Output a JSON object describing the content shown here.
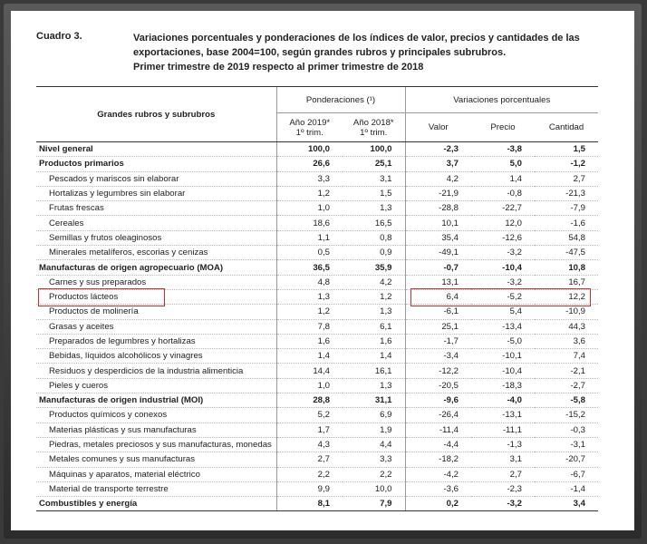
{
  "header": {
    "label": "Cuadro 3.",
    "title_lines": [
      "Variaciones porcentuales y ponderaciones de los índices de valor, precios y cantidades de las",
      "exportaciones, base 2004=100, según grandes rubros y principales subrubros.",
      "Primer trimestre de 2019 respecto al primer trimestre de 2018"
    ]
  },
  "table": {
    "row_header": "Grandes rubros y subrubros",
    "groups": [
      {
        "label": "Ponderaciones (¹)",
        "span": 2
      },
      {
        "label": "Variaciones porcentuales",
        "span": 3
      }
    ],
    "columns": [
      [
        "Año 2019*",
        "1º trim."
      ],
      [
        "Año 2018*",
        "1º trim."
      ],
      [
        "Valor"
      ],
      [
        "Precio"
      ],
      [
        "Cantidad"
      ]
    ],
    "rows": [
      {
        "name": "Nivel general",
        "values": [
          "100,0",
          "100,0",
          "-2,3",
          "-3,8",
          "1,5"
        ],
        "bold": true
      },
      {
        "name": "Productos primarios",
        "values": [
          "26,6",
          "25,1",
          "3,7",
          "5,0",
          "-1,2"
        ],
        "bold": true
      },
      {
        "name": "Pescados y mariscos sin elaborar",
        "values": [
          "3,3",
          "3,1",
          "4,2",
          "1,4",
          "2,7"
        ]
      },
      {
        "name": "Hortalizas y legumbres sin elaborar",
        "values": [
          "1,2",
          "1,5",
          "-21,9",
          "-0,8",
          "-21,3"
        ]
      },
      {
        "name": "Frutas frescas",
        "values": [
          "1,0",
          "1,3",
          "-28,8",
          "-22,7",
          "-7,9"
        ]
      },
      {
        "name": "Cereales",
        "values": [
          "18,6",
          "16,5",
          "10,1",
          "12,0",
          "-1,6"
        ]
      },
      {
        "name": "Semillas y frutos oleaginosos",
        "values": [
          "1,1",
          "0,8",
          "35,4",
          "-12,6",
          "54,8"
        ]
      },
      {
        "name": "Minerales metalíferos, escorias y cenizas",
        "values": [
          "0,5",
          "0,9",
          "-49,1",
          "-3,2",
          "-47,5"
        ]
      },
      {
        "name": "Manufacturas de origen agropecuario (MOA)",
        "values": [
          "36,5",
          "35,9",
          "-0,7",
          "-10,4",
          "10,8"
        ],
        "bold": true
      },
      {
        "name": "Carnes y sus preparados",
        "values": [
          "4,8",
          "4,2",
          "13,1",
          "-3,2",
          "16,7"
        ]
      },
      {
        "name": "Productos lácteos",
        "values": [
          "1,3",
          "1,2",
          "6,4",
          "-5,2",
          "12,2"
        ],
        "highlight": true
      },
      {
        "name": "Productos de molinería",
        "values": [
          "1,2",
          "1,3",
          "-6,1",
          "5,4",
          "-10,9"
        ]
      },
      {
        "name": "Grasas y aceites",
        "values": [
          "7,8",
          "6,1",
          "25,1",
          "-13,4",
          "44,3"
        ]
      },
      {
        "name": "Preparados de legumbres y hortalizas",
        "values": [
          "1,6",
          "1,6",
          "-1,7",
          "-5,0",
          "3,6"
        ]
      },
      {
        "name": "Bebidas, líquidos alcohólicos y vinagres",
        "values": [
          "1,4",
          "1,4",
          "-3,4",
          "-10,1",
          "7,4"
        ]
      },
      {
        "name": "Residuos y desperdicios de la industria alimenticia",
        "values": [
          "14,4",
          "16,1",
          "-12,2",
          "-10,4",
          "-2,1"
        ]
      },
      {
        "name": "Pieles y cueros",
        "values": [
          "1,0",
          "1,3",
          "-20,5",
          "-18,3",
          "-2,7"
        ]
      },
      {
        "name": "Manufacturas de origen industrial (MOI)",
        "values": [
          "28,8",
          "31,1",
          "-9,6",
          "-4,0",
          "-5,8"
        ],
        "bold": true
      },
      {
        "name": "Productos químicos y conexos",
        "values": [
          "5,2",
          "6,9",
          "-26,4",
          "-13,1",
          "-15,2"
        ]
      },
      {
        "name": "Materias plásticas y sus manufacturas",
        "values": [
          "1,7",
          "1,9",
          "-11,4",
          "-11,1",
          "-0,3"
        ]
      },
      {
        "name": "Piedras, metales preciosos y sus manufacturas, monedas",
        "values": [
          "4,3",
          "4,4",
          "-4,4",
          "-1,3",
          "-3,1"
        ]
      },
      {
        "name": "Metales comunes y sus manufacturas",
        "values": [
          "2,7",
          "3,3",
          "-18,2",
          "3,1",
          "-20,7"
        ]
      },
      {
        "name": "Máquinas y aparatos, material eléctrico",
        "values": [
          "2,2",
          "2,2",
          "-4,2",
          "2,7",
          "-6,7"
        ]
      },
      {
        "name": "Material de transporte terrestre",
        "values": [
          "9,9",
          "10,0",
          "-3,6",
          "-2,3",
          "-1,4"
        ]
      },
      {
        "name": "Combustibles y energía",
        "values": [
          "8,1",
          "7,9",
          "0,2",
          "-3,2",
          "3,4"
        ],
        "bold": true
      }
    ]
  }
}
